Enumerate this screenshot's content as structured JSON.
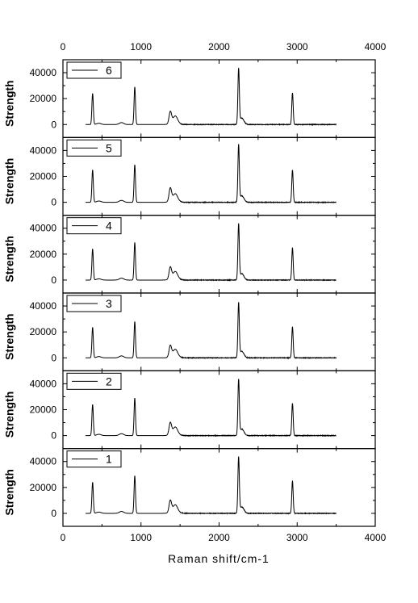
{
  "chart_data": {
    "type": "line",
    "xlabel": "Raman shift/cm-1",
    "ylabel": "Strength",
    "xlim": [
      0,
      4000
    ],
    "ylim": [
      -10000,
      50000
    ],
    "x_ticks": [
      0,
      1000,
      2000,
      3000,
      4000
    ],
    "x_tick_labels": [
      "0",
      "1000",
      "2000",
      "3000",
      "4000"
    ],
    "y_ticks": [
      0,
      20000,
      40000
    ],
    "y_tick_labels": [
      "0",
      "20000",
      "40000"
    ],
    "grid": false,
    "legend_placement": "top-left",
    "x_range_data": [
      290,
      3500
    ],
    "panels": [
      {
        "name": "6",
        "peaks": [
          {
            "x": 380,
            "y": 24000
          },
          {
            "x": 460,
            "y": 1000
          },
          {
            "x": 750,
            "y": 1500
          },
          {
            "x": 920,
            "y": 29000
          },
          {
            "x": 1375,
            "y": 9000
          },
          {
            "x": 1440,
            "y": 4500
          },
          {
            "x": 2250,
            "y": 42000
          },
          {
            "x": 2290,
            "y": 5000
          },
          {
            "x": 2940,
            "y": 24500
          }
        ]
      },
      {
        "name": "5",
        "peaks": [
          {
            "x": 380,
            "y": 25000
          },
          {
            "x": 460,
            "y": 1000
          },
          {
            "x": 750,
            "y": 1500
          },
          {
            "x": 920,
            "y": 29000
          },
          {
            "x": 1375,
            "y": 10000
          },
          {
            "x": 1440,
            "y": 4500
          },
          {
            "x": 2250,
            "y": 43000
          },
          {
            "x": 2290,
            "y": 5000
          },
          {
            "x": 2940,
            "y": 25000
          }
        ]
      },
      {
        "name": "4",
        "peaks": [
          {
            "x": 380,
            "y": 24000
          },
          {
            "x": 460,
            "y": 1000
          },
          {
            "x": 750,
            "y": 1500
          },
          {
            "x": 920,
            "y": 29000
          },
          {
            "x": 1375,
            "y": 9000
          },
          {
            "x": 1440,
            "y": 4500
          },
          {
            "x": 2250,
            "y": 42000
          },
          {
            "x": 2290,
            "y": 5000
          },
          {
            "x": 2940,
            "y": 25000
          }
        ]
      },
      {
        "name": "3",
        "peaks": [
          {
            "x": 380,
            "y": 23500
          },
          {
            "x": 460,
            "y": 1000
          },
          {
            "x": 750,
            "y": 1500
          },
          {
            "x": 920,
            "y": 28000
          },
          {
            "x": 1375,
            "y": 8500
          },
          {
            "x": 1440,
            "y": 4500
          },
          {
            "x": 2250,
            "y": 41000
          },
          {
            "x": 2290,
            "y": 5000
          },
          {
            "x": 2940,
            "y": 24000
          }
        ]
      },
      {
        "name": "2",
        "peaks": [
          {
            "x": 380,
            "y": 24000
          },
          {
            "x": 460,
            "y": 1000
          },
          {
            "x": 750,
            "y": 1500
          },
          {
            "x": 920,
            "y": 29000
          },
          {
            "x": 1375,
            "y": 9000
          },
          {
            "x": 1440,
            "y": 4500
          },
          {
            "x": 2250,
            "y": 42000
          },
          {
            "x": 2290,
            "y": 5000
          },
          {
            "x": 2940,
            "y": 25000
          }
        ]
      },
      {
        "name": "1",
        "peaks": [
          {
            "x": 380,
            "y": 24000
          },
          {
            "x": 460,
            "y": 1000
          },
          {
            "x": 750,
            "y": 1500
          },
          {
            "x": 920,
            "y": 29000
          },
          {
            "x": 1375,
            "y": 9000
          },
          {
            "x": 1440,
            "y": 4500
          },
          {
            "x": 2250,
            "y": 42000
          },
          {
            "x": 2290,
            "y": 5000
          },
          {
            "x": 2940,
            "y": 25000
          }
        ]
      }
    ]
  }
}
